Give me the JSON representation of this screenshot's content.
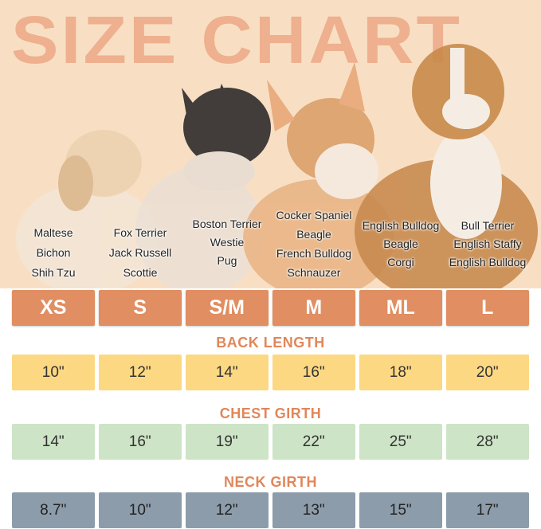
{
  "title": "SIZE CHART",
  "colors": {
    "background": "#f8dfc4",
    "title": "#eeb08e",
    "size": "#e08e62",
    "back_length": "#fcd882",
    "chest_girth": "#cde4c6",
    "neck_girth": "#8d9cab",
    "label": "#e0875a"
  },
  "breeds": [
    [
      "Maltese",
      "Bichon",
      "Shih Tzu"
    ],
    [
      "Fox Terrier",
      "Jack Russell",
      "Scottie"
    ],
    [
      "Boston Terrier",
      "Westie",
      "Pug"
    ],
    [
      "Cocker Spaniel",
      "Beagle",
      "French Bulldog",
      "Schnauzer"
    ],
    [
      "English Bulldog",
      "Beagle",
      "Corgi"
    ],
    [
      "Bull Terrier",
      "English Staffy",
      "English Bulldog"
    ]
  ],
  "sizes": [
    "XS",
    "S",
    "S/M",
    "M",
    "ML",
    "L"
  ],
  "back_length": {
    "label": "BACK LENGTH",
    "values": [
      "10\"",
      "12\"",
      "14\"",
      "16\"",
      "18\"",
      "20\""
    ]
  },
  "chest_girth": {
    "label": "CHEST GIRTH",
    "values": [
      "14\"",
      "16\"",
      "19\"",
      "22\"",
      "25\"",
      "28\""
    ]
  },
  "neck_girth": {
    "label": "NECK GIRTH",
    "values": [
      "8.7\"",
      "10\"",
      "12\"",
      "13\"",
      "15\"",
      "17\""
    ]
  }
}
